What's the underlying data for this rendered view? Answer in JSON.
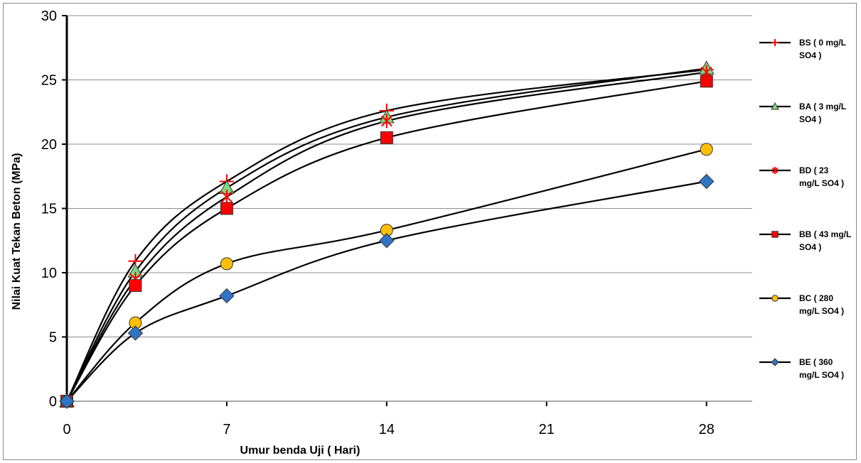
{
  "chart_data": {
    "type": "line",
    "title": "",
    "xlabel": "Umur benda Uji ( Hari)",
    "ylabel": "Nilai Kuat Tekan Beton  (MPa)",
    "xlim": [
      0,
      30
    ],
    "ylim": [
      0,
      30
    ],
    "x_ticks": [
      "0",
      "7",
      "14",
      "21",
      "28"
    ],
    "y_ticks": [
      "0",
      "5",
      "10",
      "15",
      "20",
      "25",
      "30"
    ],
    "grid": "horizontal",
    "legend_position": "right",
    "x": [
      0,
      3,
      7,
      14,
      28
    ],
    "series": [
      {
        "name_lines": [
          "BS ( 0 mg/L",
          "SO4 )"
        ],
        "marker": "plus",
        "color": "#ff0000",
        "values": [
          0,
          10.9,
          17.1,
          22.6,
          25.8
        ]
      },
      {
        "name_lines": [
          "BA ( 3 mg/L",
          "SO4 )"
        ],
        "marker": "triangle",
        "color": "#7dd87d",
        "values": [
          0,
          10.1,
          16.6,
          22.1,
          25.9
        ]
      },
      {
        "name_lines": [
          "BD ( 23",
          "mg/L SO4 )"
        ],
        "marker": "star",
        "color": "#ff0000",
        "values": [
          0,
          9.5,
          15.9,
          21.8,
          25.6
        ]
      },
      {
        "name_lines": [
          "BB ( 43 mg/L",
          "SO4 )"
        ],
        "marker": "square",
        "color": "#ff0000",
        "values": [
          0,
          9.0,
          15.0,
          20.5,
          24.9
        ]
      },
      {
        "name_lines": [
          "BC ( 280",
          "mg/L SO4 )"
        ],
        "marker": "circle",
        "color": "#ffc000",
        "values": [
          0,
          6.1,
          10.7,
          13.3,
          19.6
        ]
      },
      {
        "name_lines": [
          "BE ( 360",
          "mg/L SO4 )"
        ],
        "marker": "diamond",
        "color": "#2e75c6",
        "values": [
          0,
          5.3,
          8.2,
          12.5,
          17.1
        ]
      }
    ]
  }
}
